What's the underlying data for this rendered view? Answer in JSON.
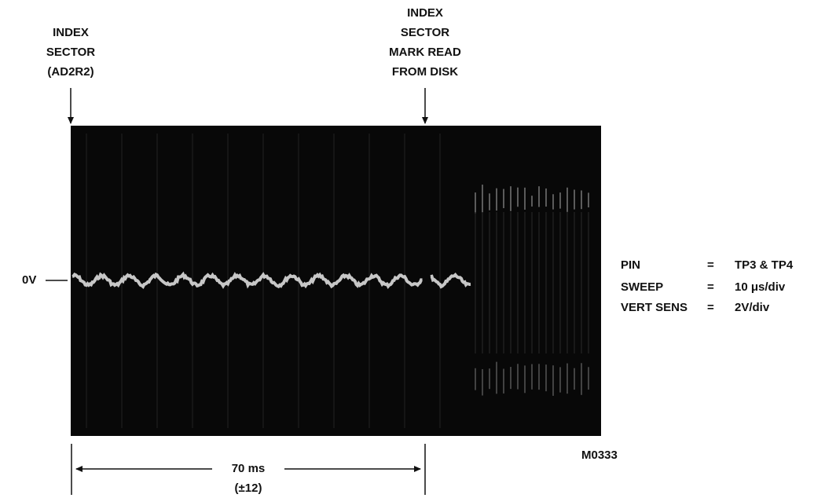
{
  "left_marker": {
    "lines": [
      "INDEX",
      "SECTOR",
      "(AD2R2)"
    ]
  },
  "right_marker": {
    "lines": [
      "INDEX",
      "SECTOR",
      "MARK READ",
      "FROM DISK"
    ]
  },
  "zero_label": "0V",
  "settings": {
    "rows": [
      [
        "PIN",
        "=",
        "TP3 & TP4"
      ],
      [
        "SWEEP",
        "=",
        "10 μs/div"
      ],
      [
        "VERT SENS",
        "=",
        "2V/div"
      ]
    ]
  },
  "figure_id": "M0333",
  "interval": {
    "label": "70 ms",
    "tolerance": "(±12)"
  }
}
